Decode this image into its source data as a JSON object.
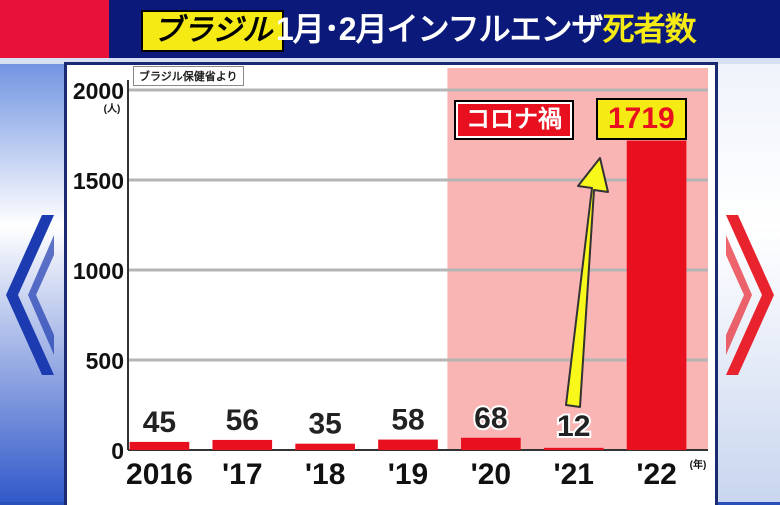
{
  "header": {
    "tag": "ブラジル",
    "title_plain": "1月･2月インフルエンザ",
    "title_highlight": "死者数"
  },
  "source_note": "ブラジル保健省より",
  "annotations": {
    "covid_label": "コロナ禍",
    "covid_start_index": 4
  },
  "colors": {
    "bar": "#e8101f",
    "covid_shade": "#f9b4b4",
    "arrow": "#f8f81a",
    "header_red": "#e8113a",
    "header_navy": "#0b1a7a",
    "tag_yellow": "#f5ea14"
  },
  "chart_data": {
    "type": "bar",
    "title": "ブラジル 1月･2月インフルエンザ死者数",
    "ylabel_unit": "(人)",
    "xlabel_unit": "(年)",
    "ylim": [
      0,
      2000
    ],
    "yticks": [
      "0",
      "500",
      "1000",
      "1500",
      "2000"
    ],
    "categories": [
      "2016",
      "'17",
      "'18",
      "'19",
      "'20",
      "'21",
      "'22"
    ],
    "values": [
      45,
      56,
      35,
      58,
      68,
      12,
      1719
    ],
    "value_labels": [
      "45",
      "56",
      "35",
      "58",
      "68",
      "12",
      "1719"
    ],
    "grid": true,
    "highlighted_value_index": 6
  }
}
